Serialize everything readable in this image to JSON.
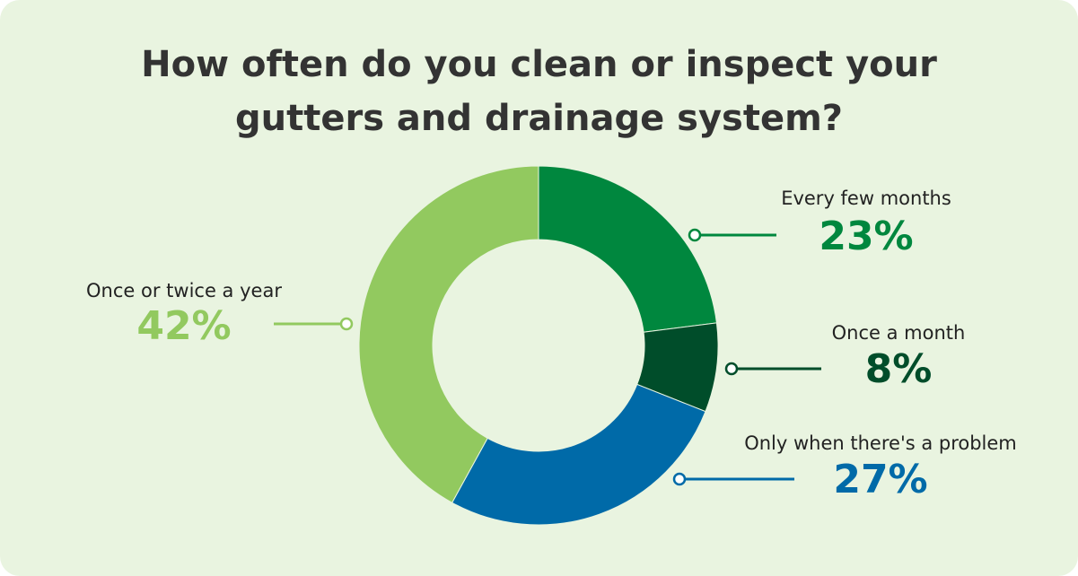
{
  "chart_data": {
    "type": "donut",
    "title": "How often do you clean or inspect your gutters and drainage system?",
    "categories": [
      "Every few months",
      "Once a month",
      "Only when there's a problem",
      "Once or twice a year"
    ],
    "values": [
      23,
      8,
      27,
      42
    ],
    "value_labels": [
      "23%",
      "8%",
      "27%",
      "42%"
    ],
    "colors": [
      "#00873e",
      "#004d2a",
      "#006aa8",
      "#92c95f"
    ]
  }
}
